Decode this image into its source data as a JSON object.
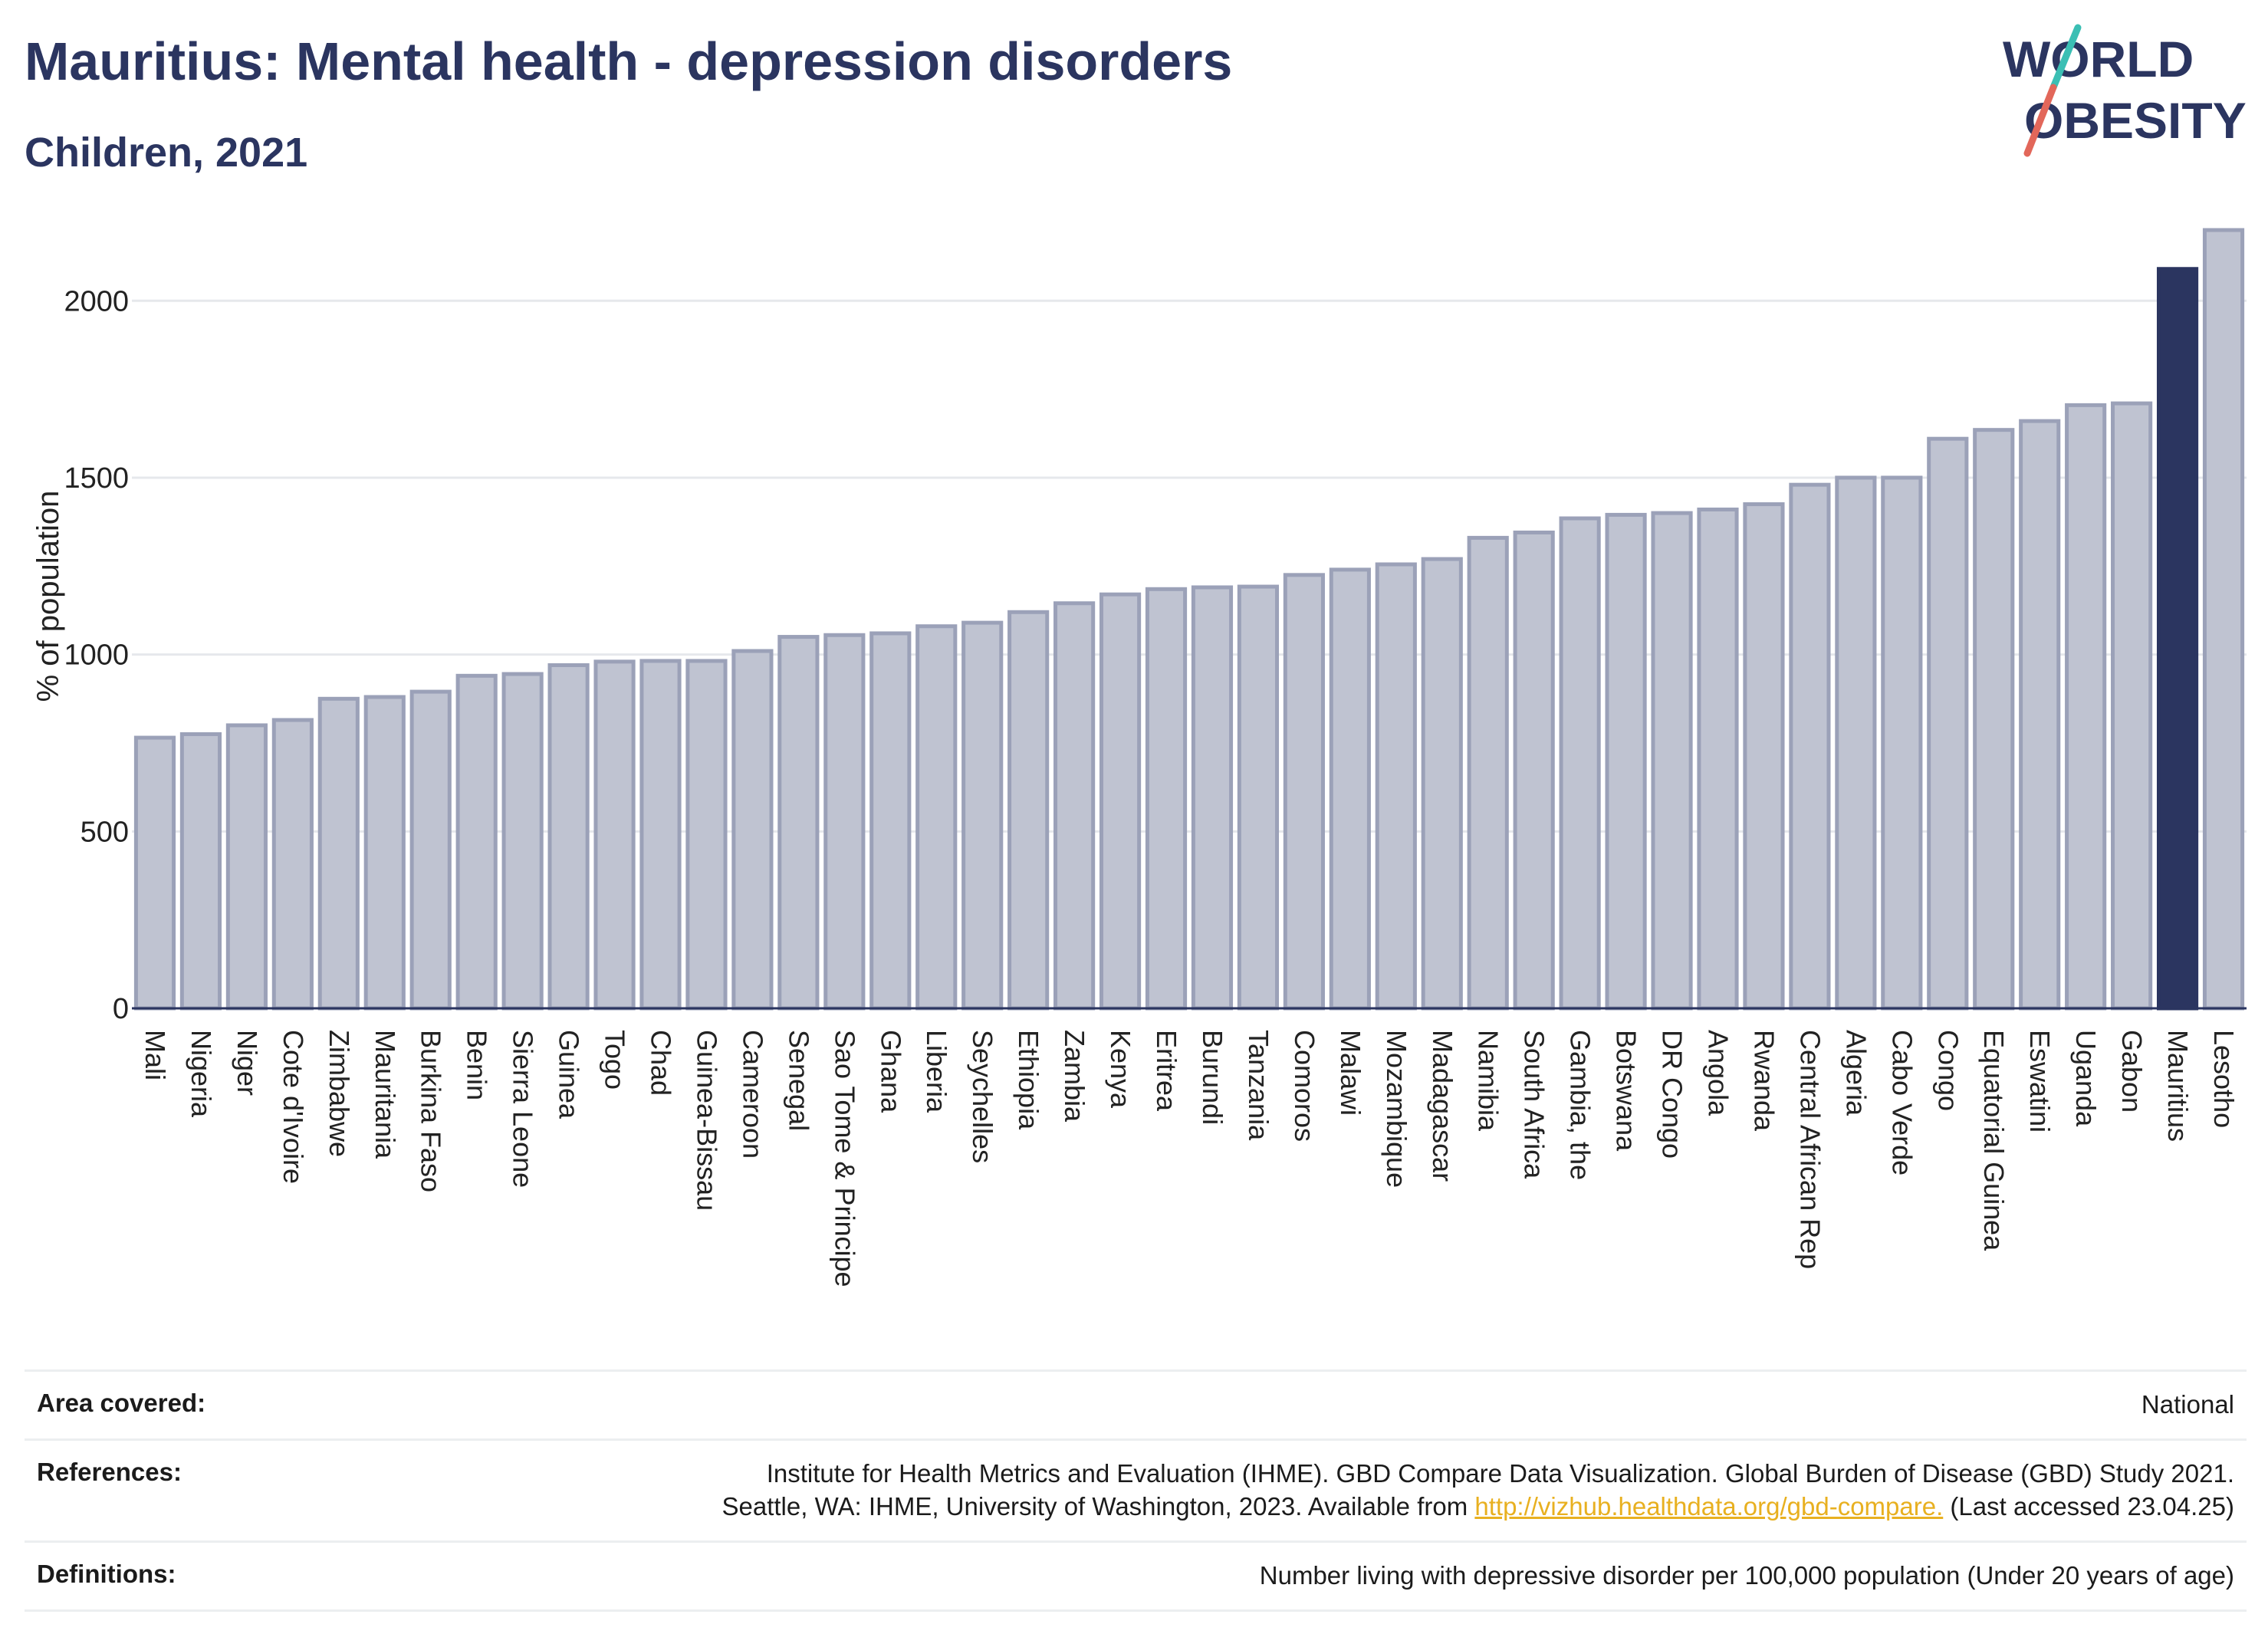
{
  "header": {
    "title": "Mauritius: Mental health - depression disorders",
    "subtitle": "Children, 2021"
  },
  "logo": {
    "line1": "WORLD",
    "line2": "OBESITY",
    "colors": [
      "#2b3560",
      "#3bbfb4",
      "#e2675a"
    ]
  },
  "chart_data": {
    "type": "bar",
    "ylabel": "% of population",
    "xlabel": "",
    "ylim": [
      0,
      2200
    ],
    "yticks": [
      0,
      500,
      1000,
      1500,
      2000
    ],
    "grid": true,
    "highlight": "Mauritius",
    "colors": {
      "bar": "#bfc3d1",
      "bar_edge": "#9ba1b8",
      "highlight": "#2b3560",
      "grid": "#e6e8ec",
      "axis": "#2b3560"
    },
    "categories": [
      "Mali",
      "Nigeria",
      "Niger",
      "Cote d'Ivoire",
      "Zimbabwe",
      "Mauritania",
      "Burkina Faso",
      "Benin",
      "Sierra Leone",
      "Guinea",
      "Togo",
      "Chad",
      "Guinea-Bissau",
      "Cameroon",
      "Senegal",
      "Sao Tome & Principe",
      "Ghana",
      "Liberia",
      "Seychelles",
      "Ethiopia",
      "Zambia",
      "Kenya",
      "Eritrea",
      "Burundi",
      "Tanzania",
      "Comoros",
      "Malawi",
      "Mozambique",
      "Madagascar",
      "Namibia",
      "South Africa",
      "Gambia, the",
      "Botswana",
      "DR Congo",
      "Angola",
      "Rwanda",
      "Central African Rep",
      "Algeria",
      "Cabo Verde",
      "Congo",
      "Equatorial Guinea",
      "Eswatini",
      "Uganda",
      "Gabon",
      "Mauritius",
      "Lesotho"
    ],
    "values": [
      765,
      775,
      800,
      815,
      875,
      880,
      895,
      940,
      945,
      970,
      980,
      982,
      982,
      1010,
      1050,
      1055,
      1060,
      1080,
      1090,
      1120,
      1145,
      1170,
      1185,
      1190,
      1192,
      1225,
      1240,
      1255,
      1270,
      1330,
      1345,
      1385,
      1395,
      1400,
      1410,
      1425,
      1480,
      1500,
      1500,
      1610,
      1635,
      1660,
      1705,
      1710,
      2090,
      2200
    ]
  },
  "footer": {
    "area_label": "Area covered:",
    "area_value": "National",
    "references_label": "References:",
    "references_line1": "Institute for Health Metrics and Evaluation (IHME). GBD Compare Data Visualization. Global Burden of Disease (GBD) Study 2021.",
    "references_line2_pre": "Seattle, WA: IHME, University of Washington, 2023. Available from ",
    "references_link": "http://vizhub.healthdata.org/gbd-compare.",
    "references_line2_post": " (Last accessed 23.04.25)",
    "definitions_label": "Definitions:",
    "definitions_value": "Number living with depressive disorder per 100,000 population (Under 20 years of age)"
  }
}
